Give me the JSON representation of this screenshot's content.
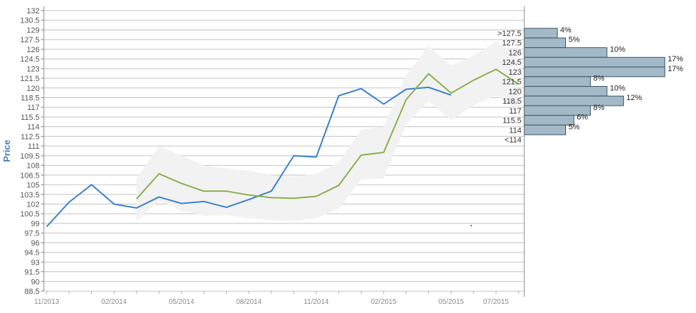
{
  "chart_data": {
    "type": "line",
    "ylabel": "Price",
    "ylim": [
      88.5,
      132
    ],
    "y_ticks": [
      "132",
      "130.5",
      "129",
      "127.5",
      "126",
      "124.5",
      "123",
      "121.5",
      "120",
      "118.5",
      "117",
      "115.5",
      "114",
      "112.5",
      "111",
      "109.5",
      "108",
      "106.5",
      "105",
      "103.5",
      "102",
      "100.5",
      "99",
      "97.5",
      "96",
      "94.5",
      "93",
      "91.5",
      "90",
      "88.5"
    ],
    "x_ticks": [
      {
        "label": "11/2013",
        "date": "2013-11"
      },
      {
        "label": "02/2014",
        "date": "2014-02"
      },
      {
        "label": "05/2014",
        "date": "2014-05"
      },
      {
        "label": "08/2014",
        "date": "2014-08"
      },
      {
        "label": "11/2014",
        "date": "2014-11"
      },
      {
        "label": "02/2015",
        "date": "2015-02"
      },
      {
        "label": "05/2015",
        "date": "2015-05"
      },
      {
        "label": "07/2015",
        "date": "2015-07"
      }
    ],
    "grid": true,
    "series": [
      {
        "color": "#3a7fcf",
        "points": [
          {
            "x": "2013-11",
            "y": 98.5
          },
          {
            "x": "2013-12",
            "y": 102.3
          },
          {
            "x": "2014-01",
            "y": 105.0
          },
          {
            "x": "2014-02",
            "y": 102.0
          },
          {
            "x": "2014-03",
            "y": 101.4
          },
          {
            "x": "2014-04",
            "y": 103.1
          },
          {
            "x": "2014-05",
            "y": 102.1
          },
          {
            "x": "2014-06",
            "y": 102.4
          },
          {
            "x": "2014-07",
            "y": 101.5
          },
          {
            "x": "2014-08",
            "y": 102.7
          },
          {
            "x": "2014-09",
            "y": 104.0
          },
          {
            "x": "2014-10",
            "y": 109.5
          },
          {
            "x": "2014-11",
            "y": 109.3
          },
          {
            "x": "2014-12",
            "y": 118.8
          },
          {
            "x": "2015-01",
            "y": 119.9
          },
          {
            "x": "2015-02",
            "y": 117.5
          },
          {
            "x": "2015-03",
            "y": 119.8
          },
          {
            "x": "2015-04",
            "y": 120.1
          },
          {
            "x": "2015-05",
            "y": 118.9
          }
        ]
      },
      {
        "color": "#8aaf4e",
        "points": [
          {
            "x": "2014-03",
            "y": 102.8
          },
          {
            "x": "2014-04",
            "y": 106.7
          },
          {
            "x": "2014-05",
            "y": 105.2
          },
          {
            "x": "2014-06",
            "y": 104.0
          },
          {
            "x": "2014-07",
            "y": 104.0
          },
          {
            "x": "2014-08",
            "y": 103.4
          },
          {
            "x": "2014-09",
            "y": 103.0
          },
          {
            "x": "2014-10",
            "y": 102.9
          },
          {
            "x": "2014-11",
            "y": 103.2
          },
          {
            "x": "2014-12",
            "y": 104.9
          },
          {
            "x": "2015-01",
            "y": 109.6
          },
          {
            "x": "2015-02",
            "y": 110.0
          },
          {
            "x": "2015-03",
            "y": 118.2
          },
          {
            "x": "2015-04",
            "y": 122.2
          },
          {
            "x": "2015-05",
            "y": 119.2
          },
          {
            "x": "2015-06",
            "y": 121.2
          },
          {
            "x": "2015-07",
            "y": 122.9
          },
          {
            "x": "2015-08",
            "y": 120.6
          }
        ]
      }
    ],
    "band": {
      "color": "#f2f2f2",
      "upper": [
        {
          "x": "2014-03",
          "y": 106.0
        },
        {
          "x": "2014-04",
          "y": 111.0
        },
        {
          "x": "2014-05",
          "y": 109.5
        },
        {
          "x": "2014-06",
          "y": 108.0
        },
        {
          "x": "2014-07",
          "y": 107.5
        },
        {
          "x": "2014-08",
          "y": 107.2
        },
        {
          "x": "2014-09",
          "y": 106.5
        },
        {
          "x": "2014-10",
          "y": 106.3
        },
        {
          "x": "2014-11",
          "y": 106.7
        },
        {
          "x": "2014-12",
          "y": 108.5
        },
        {
          "x": "2015-01",
          "y": 113.5
        },
        {
          "x": "2015-02",
          "y": 114.0
        },
        {
          "x": "2015-03",
          "y": 122.0
        },
        {
          "x": "2015-04",
          "y": 126.5
        },
        {
          "x": "2015-05",
          "y": 123.5
        },
        {
          "x": "2015-06",
          "y": 125.0
        },
        {
          "x": "2015-07",
          "y": 127.2
        },
        {
          "x": "2015-08",
          "y": 125.0
        }
      ],
      "lower": [
        {
          "x": "2014-03",
          "y": 99.4
        },
        {
          "x": "2014-04",
          "y": 102.5
        },
        {
          "x": "2014-05",
          "y": 101.0
        },
        {
          "x": "2014-06",
          "y": 100.2
        },
        {
          "x": "2014-07",
          "y": 100.3
        },
        {
          "x": "2014-08",
          "y": 99.8
        },
        {
          "x": "2014-09",
          "y": 99.5
        },
        {
          "x": "2014-10",
          "y": 99.4
        },
        {
          "x": "2014-11",
          "y": 99.8
        },
        {
          "x": "2014-12",
          "y": 101.3
        },
        {
          "x": "2015-01",
          "y": 105.8
        },
        {
          "x": "2015-02",
          "y": 106.0
        },
        {
          "x": "2015-03",
          "y": 114.3
        },
        {
          "x": "2015-04",
          "y": 118.0
        },
        {
          "x": "2015-05",
          "y": 115.0
        },
        {
          "x": "2015-06",
          "y": 117.3
        },
        {
          "x": "2015-07",
          "y": 118.8
        },
        {
          "x": "2015-08",
          "y": 116.5
        }
      ]
    },
    "histogram": {
      "color": "#a3b9c7",
      "bins": [
        {
          "label": ">127.5",
          "y": 128.5,
          "pct": 4,
          "pct_label": "4%"
        },
        {
          "label": "127.5",
          "y": 127.0,
          "pct": 5,
          "pct_label": "5%"
        },
        {
          "label": "126",
          "y": 125.5,
          "pct": 10,
          "pct_label": "10%"
        },
        {
          "label": "124.5",
          "y": 124.0,
          "pct": 17,
          "pct_label": "17%"
        },
        {
          "label": "123",
          "y": 122.5,
          "pct": 17,
          "pct_label": "17%"
        },
        {
          "label": "121.5",
          "y": 121.0,
          "pct": 8,
          "pct_label": "8%"
        },
        {
          "label": "120",
          "y": 119.5,
          "pct": 10,
          "pct_label": "10%"
        },
        {
          "label": "118.5",
          "y": 118.0,
          "pct": 12,
          "pct_label": "12%"
        },
        {
          "label": "117",
          "y": 116.5,
          "pct": 8,
          "pct_label": "8%"
        },
        {
          "label": "115.5",
          "y": 115.0,
          "pct": 6,
          "pct_label": "6%"
        },
        {
          "label": "114",
          "y": 113.5,
          "pct": 5,
          "pct_label": "5%"
        },
        {
          "label": "<114",
          "y": 112.0,
          "pct": 0,
          "pct_label": ""
        }
      ]
    }
  }
}
